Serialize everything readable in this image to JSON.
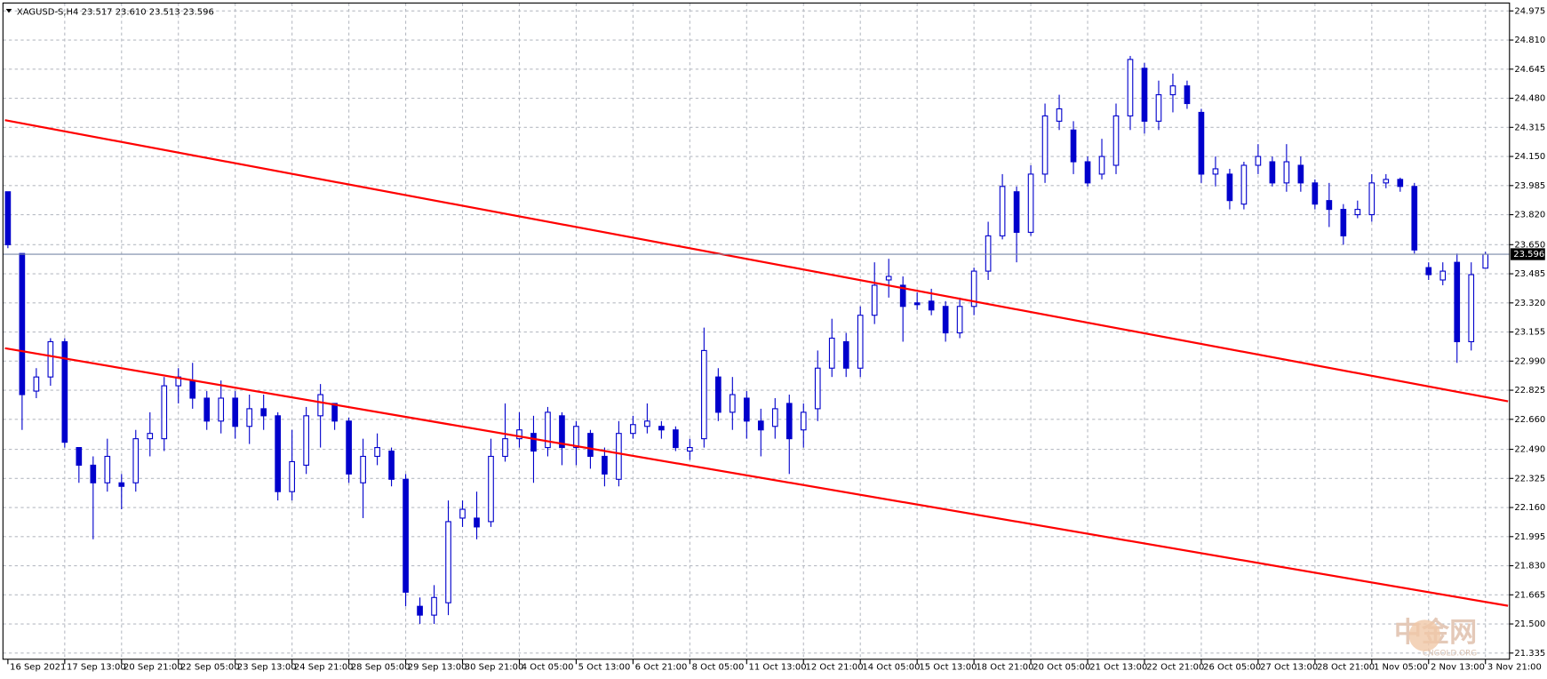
{
  "chart_data": {
    "type": "candlestick",
    "title": "XAGUSD-S,H4  23.517 23.610 23.513 23.596",
    "color": "#0000cc",
    "up_fill": "#ffffff",
    "grid": true,
    "grid_color": "#b8bcc4",
    "price_line_color": "#7a8aa8",
    "watermark": "中金网",
    "watermark_sub": "CNGOLD.ORG",
    "ylim": [
      21.3,
      25.02
    ],
    "yticks": [
      24.975,
      {
        "value": 24.81,
        "label": "24.810"
      },
      24.645,
      {
        "value": 24.48,
        "label": "24.480"
      },
      24.315,
      {
        "value": 24.15,
        "label": "24.150"
      },
      23.985,
      {
        "value": 23.82,
        "label": "23.820"
      },
      {
        "value": 23.65,
        "label": "23.650"
      },
      23.485,
      {
        "value": 23.32,
        "label": "23.320"
      },
      23.155,
      {
        "value": 22.99,
        "label": "22.990"
      },
      22.825,
      {
        "value": 22.66,
        "label": "22.660"
      },
      {
        "value": 22.49,
        "label": "22.490"
      },
      22.325,
      {
        "value": 22.16,
        "label": "22.160"
      },
      21.995,
      {
        "value": 21.83,
        "label": "21.830"
      },
      21.665,
      {
        "value": 21.5,
        "label": "21.500"
      },
      21.335
    ],
    "x": [
      "16 Sep 2021",
      null,
      null,
      null,
      "17 Sep 13:00",
      null,
      null,
      null,
      "20 Sep 21:00",
      null,
      null,
      null,
      "22 Sep 05:00",
      null,
      null,
      null,
      "23 Sep 13:00",
      null,
      null,
      null,
      "24 Sep 21:00",
      null,
      null,
      null,
      "28 Sep 05:00",
      null,
      null,
      null,
      "29 Sep 13:00",
      null,
      null,
      null,
      "30 Sep 21:00",
      null,
      null,
      null,
      "4 Oct 05:00",
      null,
      null,
      null,
      "5 Oct 13:00",
      null,
      null,
      null,
      "6 Oct 21:00",
      null,
      null,
      null,
      "8 Oct 05:00",
      null,
      null,
      null,
      "11 Oct 13:00",
      null,
      null,
      null,
      "12 Oct 21:00",
      null,
      null,
      null,
      "14 Oct 05:00",
      null,
      null,
      null,
      "15 Oct 13:00",
      null,
      null,
      null,
      "18 Oct 21:00",
      null,
      null,
      null,
      "20 Oct 05:00",
      null,
      null,
      null,
      "21 Oct 13:00",
      null,
      null,
      null,
      "22 Oct 21:00",
      null,
      null,
      null,
      "26 Oct 05:00",
      null,
      null,
      null,
      "27 Oct 13:00",
      null,
      null,
      null,
      "28 Oct 21:00",
      null,
      null,
      null,
      "1 Nov 05:00",
      null,
      null,
      null,
      "2 Nov 13:00",
      null,
      null,
      null,
      "3 Nov 21:00"
    ],
    "open": [
      23.95,
      23.6,
      22.82,
      22.9,
      23.1,
      22.5,
      22.4,
      22.3,
      22.3,
      22.3,
      22.55,
      22.55,
      22.85,
      22.88,
      22.78,
      22.65,
      22.78,
      22.62,
      22.72,
      22.68,
      22.25,
      22.4,
      22.68,
      22.75,
      22.65,
      22.3,
      22.45,
      22.48,
      22.32,
      21.6,
      21.55,
      21.62,
      22.1,
      22.1,
      22.08,
      22.45,
      22.55,
      22.58,
      22.5,
      22.68,
      22.5,
      22.58,
      22.45,
      22.32,
      22.58,
      22.62,
      22.62,
      22.6,
      22.48,
      22.55,
      22.9,
      22.7,
      22.78,
      22.65,
      22.62,
      22.75,
      22.6,
      22.72,
      22.95,
      23.1,
      22.95,
      23.25,
      23.45,
      23.42,
      23.32,
      23.33,
      23.3,
      23.15,
      23.3,
      23.5,
      23.7,
      23.95,
      23.72,
      24.05,
      24.35,
      24.3,
      24.12,
      24.05,
      24.1,
      24.38,
      24.65,
      24.35,
      24.5,
      24.55,
      24.4,
      24.05,
      24.05,
      23.88,
      24.1,
      24.12,
      24.0,
      24.1,
      24.0,
      23.9,
      23.85,
      23.82,
      23.82,
      24.0,
      24.02,
      23.98,
      23.52,
      23.45,
      23.55,
      23.1,
      23.517
    ],
    "high": [
      23.95,
      23.6,
      22.95,
      23.12,
      23.12,
      22.5,
      22.45,
      22.55,
      22.35,
      22.6,
      22.7,
      22.9,
      22.95,
      22.98,
      22.82,
      22.88,
      22.82,
      22.8,
      22.8,
      22.7,
      22.6,
      22.73,
      22.86,
      22.75,
      22.67,
      22.55,
      22.58,
      22.5,
      22.35,
      21.65,
      21.72,
      22.2,
      22.2,
      22.25,
      22.55,
      22.75,
      22.7,
      22.68,
      22.73,
      22.7,
      22.65,
      22.6,
      22.5,
      22.65,
      22.68,
      22.75,
      22.65,
      22.62,
      22.55,
      23.18,
      22.95,
      22.9,
      22.82,
      22.72,
      22.78,
      22.8,
      22.75,
      23.05,
      23.23,
      23.15,
      23.3,
      23.55,
      23.57,
      23.47,
      23.38,
      23.4,
      23.33,
      23.35,
      23.52,
      23.78,
      24.05,
      23.98,
      24.1,
      24.45,
      24.5,
      24.35,
      24.15,
      24.25,
      24.45,
      24.72,
      24.68,
      24.58,
      24.62,
      24.58,
      24.42,
      24.15,
      24.08,
      24.12,
      24.22,
      24.15,
      24.22,
      24.15,
      24.02,
      24.0,
      23.88,
      23.9,
      24.05,
      24.05,
      24.03,
      24.0,
      23.55,
      23.55,
      23.6,
      23.55,
      23.61
    ],
    "low": [
      23.63,
      22.6,
      22.78,
      22.85,
      22.5,
      22.3,
      21.98,
      22.25,
      22.15,
      22.25,
      22.45,
      22.48,
      22.75,
      22.72,
      22.6,
      22.58,
      22.55,
      22.52,
      22.6,
      22.2,
      22.2,
      22.35,
      22.5,
      22.6,
      22.3,
      22.1,
      22.4,
      22.28,
      21.6,
      21.5,
      21.5,
      21.55,
      22.05,
      21.98,
      22.05,
      22.42,
      22.5,
      22.3,
      22.45,
      22.4,
      22.4,
      22.38,
      22.28,
      22.28,
      22.55,
      22.58,
      22.55,
      22.48,
      22.43,
      22.5,
      22.65,
      22.6,
      22.55,
      22.45,
      22.55,
      22.35,
      22.5,
      22.65,
      22.9,
      22.9,
      22.9,
      23.2,
      23.35,
      23.1,
      23.28,
      23.25,
      23.1,
      23.12,
      23.25,
      23.45,
      23.68,
      23.55,
      23.7,
      24.0,
      24.3,
      24.05,
      23.98,
      24.02,
      24.05,
      24.3,
      24.28,
      24.3,
      24.4,
      24.42,
      24.0,
      23.98,
      23.85,
      23.85,
      24.05,
      23.98,
      23.95,
      23.95,
      23.85,
      23.75,
      23.65,
      23.8,
      23.78,
      23.97,
      23.95,
      23.6,
      23.45,
      23.42,
      22.98,
      23.05,
      23.513
    ],
    "close": [
      23.65,
      22.8,
      22.9,
      23.1,
      22.53,
      22.4,
      22.3,
      22.45,
      22.28,
      22.55,
      22.58,
      22.85,
      22.9,
      22.78,
      22.65,
      22.78,
      22.62,
      22.72,
      22.68,
      22.25,
      22.42,
      22.68,
      22.8,
      22.65,
      22.35,
      22.45,
      22.5,
      22.32,
      21.68,
      21.55,
      21.65,
      22.08,
      22.15,
      22.05,
      22.45,
      22.55,
      22.6,
      22.48,
      22.7,
      22.5,
      22.62,
      22.45,
      22.35,
      22.58,
      22.63,
      22.65,
      22.6,
      22.5,
      22.5,
      23.05,
      22.7,
      22.8,
      22.65,
      22.6,
      22.72,
      22.55,
      22.7,
      22.95,
      23.12,
      22.95,
      23.25,
      23.42,
      23.47,
      23.3,
      23.31,
      23.28,
      23.15,
      23.3,
      23.5,
      23.7,
      23.98,
      23.72,
      24.05,
      24.38,
      24.42,
      24.12,
      24.0,
      24.15,
      24.38,
      24.7,
      24.35,
      24.5,
      24.55,
      24.45,
      24.05,
      24.08,
      23.9,
      24.1,
      24.15,
      24.0,
      24.12,
      24.0,
      23.88,
      23.85,
      23.7,
      23.85,
      24.0,
      24.02,
      23.98,
      23.62,
      23.48,
      23.5,
      23.1,
      23.48,
      23.596
    ],
    "trend_lines": [
      {
        "color": "#ff0000",
        "x": [
          0,
          105.8
        ],
        "y": [
          24.356,
          22.762
        ]
      },
      {
        "color": "#ff0000",
        "x": [
          0,
          105.8
        ],
        "y": [
          23.063,
          21.603
        ]
      }
    ]
  }
}
